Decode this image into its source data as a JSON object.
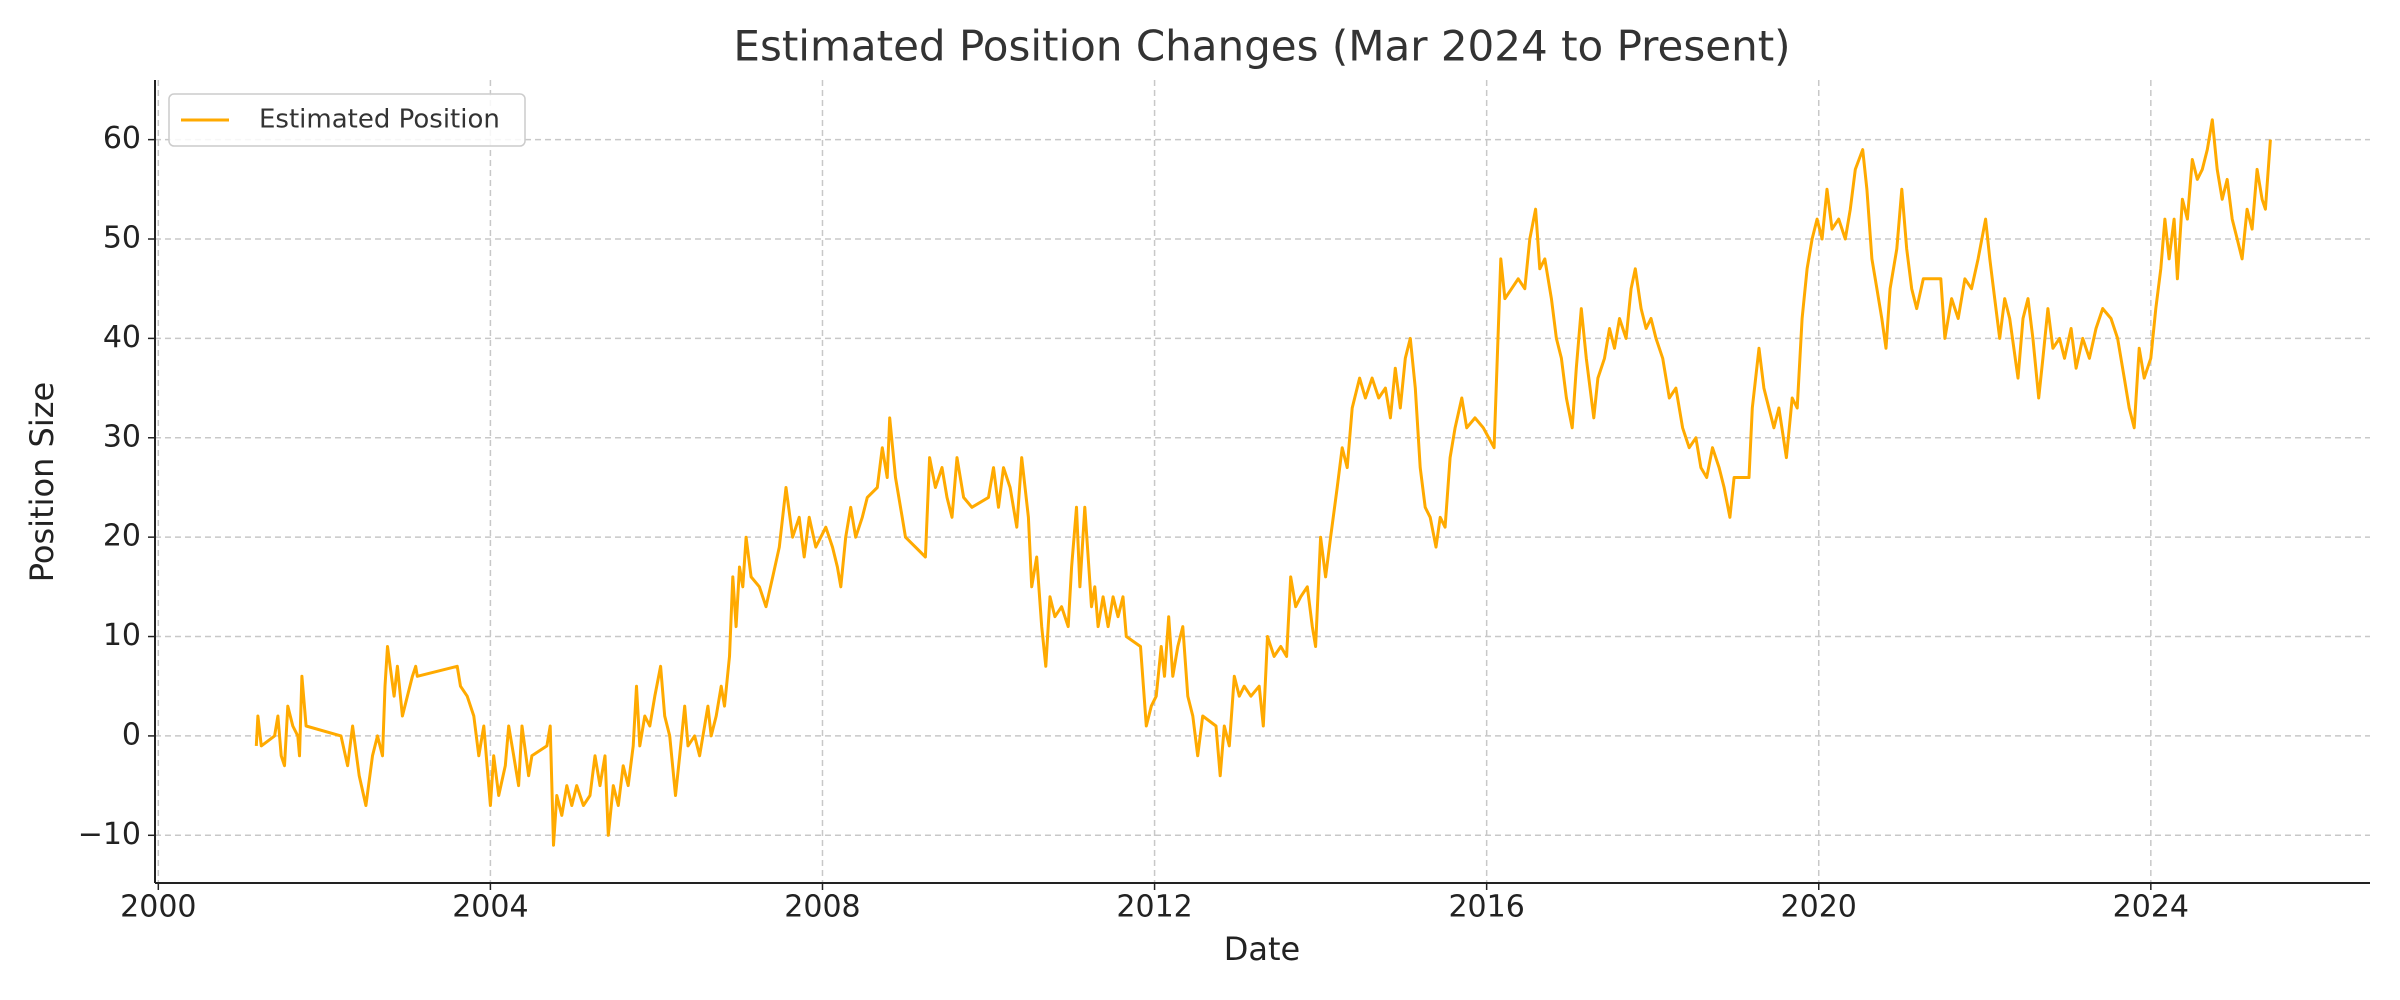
{
  "chart_data": {
    "type": "line",
    "title": "Estimated Position Changes (Mar 2024 to Present)",
    "x_label": "Date",
    "y_label": "Position Size",
    "x": [
      2001.18,
      2001.2,
      2001.24,
      2001.4,
      2001.44,
      2001.48,
      2001.52,
      2001.56,
      2001.62,
      2001.68,
      2001.7,
      2001.73,
      2001.78,
      2002.2,
      2002.28,
      2002.34,
      2002.42,
      2002.5,
      2002.58,
      2002.64,
      2002.7,
      2002.73,
      2002.76,
      2002.84,
      2002.88,
      2002.94,
      2003.06,
      2003.1,
      2003.12,
      2003.6,
      2003.64,
      2003.72,
      2003.8,
      2003.86,
      2003.92,
      2004.0,
      2004.04,
      2004.1,
      2004.18,
      2004.22,
      2004.28,
      2004.34,
      2004.38,
      2004.46,
      2004.5,
      2004.68,
      2004.72,
      2004.76,
      2004.8,
      2004.86,
      2004.92,
      2004.98,
      2005.04,
      2005.12,
      2005.2,
      2005.26,
      2005.32,
      2005.38,
      2005.42,
      2005.48,
      2005.54,
      2005.6,
      2005.66,
      2005.72,
      2005.76,
      2005.8,
      2005.86,
      2005.92,
      2005.98,
      2006.05,
      2006.1,
      2006.16,
      2006.23,
      2006.28,
      2006.34,
      2006.38,
      2006.46,
      2006.52,
      2006.58,
      2006.62,
      2006.66,
      2006.72,
      2006.78,
      2006.82,
      2006.88,
      2006.92,
      2006.96,
      2007.0,
      2007.04,
      2007.08,
      2007.14,
      2007.24,
      2007.32,
      2007.4,
      2007.48,
      2007.56,
      2007.64,
      2007.72,
      2007.78,
      2007.84,
      2007.92,
      2008.04,
      2008.12,
      2008.18,
      2008.22,
      2008.28,
      2008.34,
      2008.4,
      2008.48,
      2008.54,
      2008.66,
      2008.72,
      2008.78,
      2008.81,
      2008.88,
      2008.96,
      2009.0,
      2009.24,
      2009.29,
      2009.36,
      2009.44,
      2009.5,
      2009.56,
      2009.62,
      2009.7,
      2009.8,
      2010.0,
      2010.06,
      2010.12,
      2010.18,
      2010.26,
      2010.34,
      2010.4,
      2010.48,
      2010.52,
      2010.58,
      2010.64,
      2010.69,
      2010.74,
      2010.8,
      2010.88,
      2010.96,
      2011.0,
      2011.06,
      2011.1,
      2011.16,
      2011.24,
      2011.28,
      2011.32,
      2011.38,
      2011.44,
      2011.5,
      2011.56,
      2011.62,
      2011.66,
      2011.83,
      2011.9,
      2011.96,
      2012.02,
      2012.08,
      2012.12,
      2012.17,
      2012.22,
      2012.28,
      2012.34,
      2012.4,
      2012.46,
      2012.52,
      2012.58,
      2012.74,
      2012.79,
      2012.84,
      2012.9,
      2012.96,
      2013.02,
      2013.08,
      2013.16,
      2013.26,
      2013.31,
      2013.36,
      2013.44,
      2013.52,
      2013.59,
      2013.64,
      2013.7,
      2013.76,
      2013.84,
      2013.9,
      2013.94,
      2014.0,
      2014.06,
      2014.12,
      2014.2,
      2014.26,
      2014.32,
      2014.38,
      2014.47,
      2014.54,
      2014.62,
      2014.7,
      2014.78,
      2014.84,
      2014.9,
      2014.96,
      2015.02,
      2015.08,
      2015.14,
      2015.2,
      2015.26,
      2015.32,
      2015.39,
      2015.44,
      2015.5,
      2015.56,
      2015.62,
      2015.7,
      2015.76,
      2015.86,
      2015.96,
      2016.09,
      2016.17,
      2016.22,
      2016.3,
      2016.38,
      2016.46,
      2016.52,
      2016.59,
      2016.64,
      2016.7,
      2016.78,
      2016.84,
      2016.9,
      2016.96,
      2017.03,
      2017.08,
      2017.14,
      2017.2,
      2017.29,
      2017.34,
      2017.42,
      2017.48,
      2017.54,
      2017.6,
      2017.68,
      2017.74,
      2017.79,
      2017.86,
      2017.92,
      2017.98,
      2018.04,
      2018.12,
      2018.2,
      2018.28,
      2018.36,
      2018.44,
      2018.52,
      2018.58,
      2018.65,
      2018.72,
      2018.8,
      2018.86,
      2018.93,
      2018.98,
      2019.16,
      2019.2,
      2019.28,
      2019.34,
      2019.4,
      2019.46,
      2019.52,
      2019.61,
      2019.68,
      2019.74,
      2019.8,
      2019.86,
      2019.92,
      2019.98,
      2020.04,
      2020.1,
      2020.16,
      2020.24,
      2020.32,
      2020.38,
      2020.44,
      2020.53,
      2020.58,
      2020.64,
      2020.7,
      2020.76,
      2020.81,
      2020.86,
      2020.94,
      2021.0,
      2021.06,
      2021.12,
      2021.18,
      2021.26,
      2021.36,
      2021.47,
      2021.52,
      2021.6,
      2021.68,
      2021.76,
      2021.84,
      2021.92,
      2022.01,
      2022.06,
      2022.12,
      2022.18,
      2022.24,
      2022.3,
      2022.4,
      2022.46,
      2022.52,
      2022.58,
      2022.65,
      2022.7,
      2022.76,
      2022.82,
      2022.9,
      2022.96,
      2023.04,
      2023.1,
      2023.18,
      2023.26,
      2023.34,
      2023.42,
      2023.52,
      2023.6,
      2023.68,
      2023.74,
      2023.8,
      2023.86,
      2023.92,
      2024.0,
      2024.06,
      2024.12,
      2024.17,
      2024.22,
      2024.28,
      2024.32,
      2024.38,
      2024.44,
      2024.5,
      2024.56,
      2024.62,
      2024.68,
      2024.74,
      2024.8,
      2024.86,
      2024.92,
      2024.98,
      2025.04,
      2025.1,
      2025.16,
      2025.22,
      2025.28,
      2025.34,
      2025.38,
      2025.44
    ],
    "series": [
      {
        "name": "Estimated Position",
        "color": "#ffaa00",
        "values": [
          -1,
          2,
          -1,
          0,
          2,
          -2,
          -3,
          3,
          1,
          0,
          -2,
          6,
          1,
          0,
          -3,
          1,
          -4,
          -7,
          -2,
          0,
          -2,
          5,
          9,
          4,
          7,
          2,
          6,
          7,
          6,
          7,
          5,
          4,
          2,
          -2,
          1,
          -7,
          -2,
          -6,
          -3,
          1,
          -2,
          -5,
          1,
          -4,
          -2,
          -1,
          1,
          -11,
          -6,
          -8,
          -5,
          -7,
          -5,
          -7,
          -6,
          -2,
          -5,
          -2,
          -10,
          -5,
          -7,
          -3,
          -5,
          -1,
          5,
          -1,
          2,
          1,
          4,
          7,
          2,
          0,
          -6,
          -2,
          3,
          -1,
          0,
          -2,
          1,
          3,
          0,
          2,
          5,
          3,
          8,
          16,
          11,
          17,
          15,
          20,
          16,
          15,
          13,
          16,
          19,
          25,
          20,
          22,
          18,
          22,
          19,
          21,
          19,
          17,
          15,
          20,
          23,
          20,
          22,
          24,
          25,
          29,
          26,
          32,
          26,
          22,
          20,
          18,
          28,
          25,
          27,
          24,
          22,
          28,
          24,
          23,
          24,
          27,
          23,
          27,
          25,
          21,
          28,
          22,
          15,
          18,
          11,
          7,
          14,
          12,
          13,
          11,
          17,
          23,
          15,
          23,
          13,
          15,
          11,
          14,
          11,
          14,
          12,
          14,
          10,
          9,
          1,
          3,
          4,
          9,
          6,
          12,
          6,
          9,
          11,
          4,
          2,
          -2,
          2,
          1,
          -4,
          1,
          -1,
          6,
          4,
          5,
          4,
          5,
          1,
          10,
          8,
          9,
          8,
          16,
          13,
          14,
          15,
          11,
          9,
          20,
          16,
          20,
          25,
          29,
          27,
          33,
          36,
          34,
          36,
          34,
          35,
          32,
          37,
          33,
          38,
          40,
          35,
          27,
          23,
          22,
          19,
          22,
          21,
          28,
          31,
          34,
          31,
          32,
          31,
          29,
          48,
          44,
          45,
          46,
          45,
          50,
          53,
          47,
          48,
          44,
          40,
          38,
          34,
          31,
          37,
          43,
          38,
          32,
          36,
          38,
          41,
          39,
          42,
          40,
          45,
          47,
          43,
          41,
          42,
          40,
          38,
          34,
          35,
          31,
          29,
          30,
          27,
          26,
          29,
          27,
          25,
          22,
          26,
          26,
          33,
          39,
          35,
          33,
          31,
          33,
          28,
          34,
          33,
          42,
          47,
          50,
          52,
          50,
          55,
          51,
          52,
          50,
          53,
          57,
          59,
          55,
          48,
          45,
          42,
          39,
          45,
          49,
          55,
          49,
          45,
          43,
          46,
          46,
          46,
          40,
          44,
          42,
          46,
          45,
          48,
          52,
          48,
          44,
          40,
          44,
          42,
          36,
          42,
          44,
          40,
          34,
          38,
          43,
          39,
          40,
          38,
          41,
          37,
          40,
          38,
          41,
          43,
          42,
          40,
          36,
          33,
          31,
          39,
          36,
          38,
          43,
          47,
          52,
          48,
          52,
          46,
          54,
          52,
          58,
          56,
          57,
          59,
          62,
          57,
          54,
          56,
          52,
          50,
          48,
          53,
          51,
          57,
          54,
          53,
          60
        ]
      }
    ],
    "xlim": [
      1999.96,
      2026.64
    ],
    "xticks": [
      2000,
      2004,
      2008,
      2012,
      2016,
      2020,
      2024
    ],
    "ylim": [
      -14.8,
      66
    ],
    "yticks": [
      {
        "value": -10,
        "label": "−10"
      },
      0,
      10,
      20,
      30,
      40,
      50,
      60
    ],
    "grid": true,
    "legend": "upper left"
  }
}
